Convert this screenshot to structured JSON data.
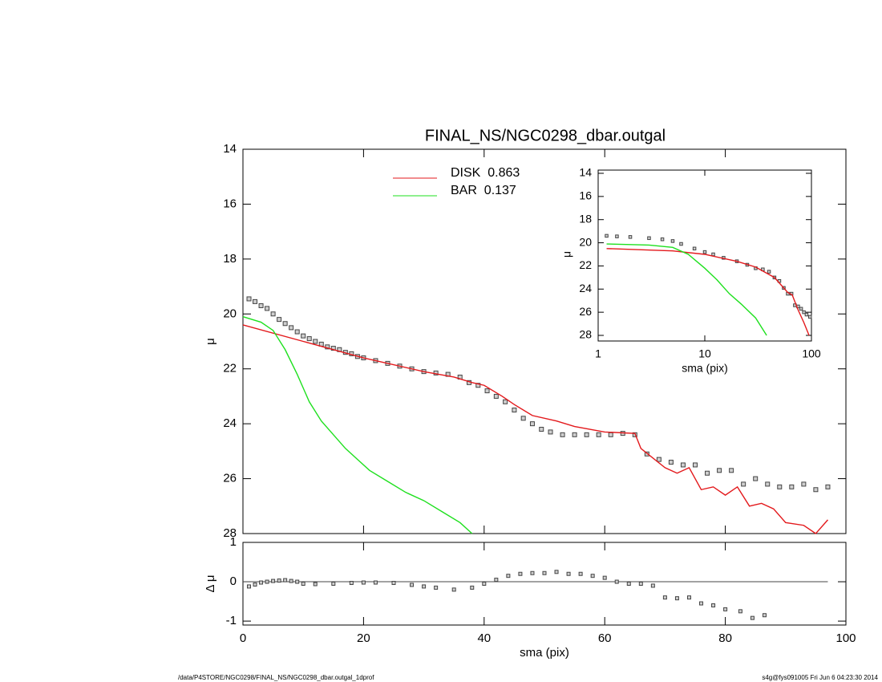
{
  "chart_data": [
    {
      "type": "line",
      "title": "FINAL_NS/NGC0298_dbar.outgal",
      "ylabel": "μ",
      "xlim": [
        0,
        100
      ],
      "ylim": [
        28,
        14
      ],
      "yticks": [
        14,
        16,
        18,
        20,
        22,
        24,
        26,
        28
      ],
      "series": [
        {
          "marker": "square",
          "color": "#444444",
          "x": [
            1,
            2,
            3,
            4,
            5,
            6,
            7,
            8,
            9,
            10,
            11,
            12,
            13,
            14,
            15,
            16,
            17,
            18,
            19,
            20,
            22,
            24,
            26,
            28,
            30,
            32,
            34,
            36,
            37.5,
            39,
            40.5,
            42,
            43.5,
            45,
            46.5,
            48,
            49.5,
            51,
            53,
            55,
            57,
            59,
            61,
            63,
            65,
            67,
            69,
            71,
            73,
            75,
            77,
            79,
            81,
            83,
            85,
            87,
            89,
            91,
            93,
            95,
            97
          ],
          "values": [
            19.45,
            19.55,
            19.7,
            19.8,
            20.0,
            20.2,
            20.35,
            20.5,
            20.65,
            20.8,
            20.9,
            21.0,
            21.1,
            21.2,
            21.25,
            21.3,
            21.4,
            21.45,
            21.55,
            21.6,
            21.7,
            21.8,
            21.9,
            22.0,
            22.1,
            22.15,
            22.2,
            22.3,
            22.5,
            22.6,
            22.8,
            23.0,
            23.2,
            23.5,
            23.8,
            24.0,
            24.2,
            24.3,
            24.4,
            24.4,
            24.4,
            24.4,
            24.4,
            24.35,
            24.4,
            25.1,
            25.3,
            25.4,
            25.5,
            25.5,
            25.8,
            25.7,
            25.7,
            26.2,
            26.0,
            26.2,
            26.3,
            26.3,
            26.2,
            26.4,
            26.3
          ]
        },
        {
          "name": "DISK  0.863",
          "color": "#e3191c",
          "x": [
            0,
            10,
            20,
            30,
            35,
            38,
            40,
            43,
            45,
            48,
            52,
            55,
            60,
            65,
            66,
            70,
            72,
            74,
            76,
            78,
            80,
            82,
            84,
            86,
            88,
            90,
            93,
            95,
            97
          ],
          "values": [
            20.4,
            21.0,
            21.6,
            22.1,
            22.3,
            22.5,
            22.6,
            23.0,
            23.3,
            23.7,
            23.9,
            24.1,
            24.3,
            24.35,
            24.9,
            25.6,
            25.8,
            25.6,
            26.4,
            26.3,
            26.6,
            26.3,
            27.0,
            26.9,
            27.1,
            27.6,
            27.7,
            28.0,
            27.5
          ]
        },
        {
          "name": "BAR  0.137",
          "color": "#1ee01e",
          "x": [
            0,
            3,
            5,
            7,
            9,
            11,
            13,
            15,
            17,
            19,
            21,
            24,
            27,
            30,
            33,
            36,
            38
          ],
          "values": [
            20.1,
            20.3,
            20.6,
            21.3,
            22.2,
            23.2,
            23.9,
            24.4,
            24.9,
            25.3,
            25.7,
            26.1,
            26.5,
            26.8,
            27.2,
            27.6,
            28.0
          ]
        }
      ]
    },
    {
      "type": "scatter",
      "ylabel": "Δ μ",
      "xlabel": "sma (pix)",
      "xlim": [
        0,
        100
      ],
      "xticks": [
        0,
        20,
        40,
        60,
        80,
        100
      ],
      "ylim": [
        -1.1,
        1
      ],
      "yticks": [
        -1,
        0,
        1
      ],
      "hline": 0,
      "series": [
        {
          "marker": "square",
          "color": "#444444",
          "x": [
            1,
            2,
            3,
            4,
            5,
            6,
            7,
            8,
            9,
            10,
            12,
            15,
            18,
            20,
            22,
            25,
            28,
            30,
            32,
            35,
            38,
            40,
            42,
            44,
            46,
            48,
            50,
            52,
            54,
            56,
            58,
            60,
            62,
            64,
            66,
            68,
            70,
            72,
            74,
            76,
            78,
            80,
            82.5,
            84.5,
            86.5
          ],
          "values": [
            -0.12,
            -0.07,
            -0.02,
            0.0,
            0.02,
            0.03,
            0.04,
            0.02,
            0.0,
            -0.05,
            -0.06,
            -0.05,
            -0.03,
            -0.02,
            -0.02,
            -0.03,
            -0.08,
            -0.12,
            -0.15,
            -0.2,
            -0.15,
            -0.05,
            0.05,
            0.15,
            0.2,
            0.22,
            0.22,
            0.25,
            0.2,
            0.2,
            0.15,
            0.1,
            0.0,
            -0.05,
            -0.05,
            -0.1,
            -0.4,
            -0.42,
            -0.4,
            -0.55,
            -0.6,
            -0.7,
            -0.75,
            -0.92,
            -0.85
          ]
        }
      ]
    },
    {
      "type": "line",
      "log_x": true,
      "ylabel": "μ",
      "xlabel": "sma (pix)",
      "xlim": [
        1,
        100
      ],
      "xticks": [
        1,
        10,
        100
      ],
      "ylim": [
        28,
        14
      ],
      "yticks": [
        14,
        16,
        18,
        20,
        22,
        24,
        26,
        28
      ],
      "series": [
        {
          "marker": "square",
          "color": "#444444",
          "x": [
            1.2,
            1.5,
            2,
            3,
            4,
            5,
            6,
            8,
            10,
            12,
            15,
            20,
            25,
            30,
            35,
            40,
            45,
            50,
            55,
            60,
            65,
            70,
            75,
            80,
            85,
            90,
            97
          ],
          "values": [
            19.4,
            19.45,
            19.5,
            19.6,
            19.7,
            19.85,
            20.1,
            20.5,
            20.8,
            21.0,
            21.3,
            21.6,
            21.9,
            22.2,
            22.3,
            22.5,
            23.0,
            23.3,
            23.9,
            24.4,
            24.4,
            25.4,
            25.5,
            25.7,
            26.0,
            26.2,
            26.4
          ]
        },
        {
          "color": "#e3191c",
          "x": [
            1.2,
            5,
            10,
            20,
            30,
            45,
            60,
            66,
            75,
            85,
            95
          ],
          "values": [
            20.5,
            20.7,
            21.0,
            21.6,
            22.1,
            23.0,
            24.3,
            24.5,
            25.8,
            26.9,
            28.0
          ]
        },
        {
          "color": "#1ee01e",
          "x": [
            1.2,
            3,
            5,
            7,
            10,
            13,
            17,
            22,
            30,
            38
          ],
          "values": [
            20.1,
            20.2,
            20.4,
            21.0,
            22.2,
            23.2,
            24.4,
            25.3,
            26.5,
            28.0
          ]
        }
      ]
    }
  ],
  "footer": {
    "left": "/data/P4STORE/NGC0298/FINAL_NS/NGC0298_dbar.outgal_1dprof",
    "right": "s4g@fys091005  Fri Jun  6 04:23:30 2014"
  }
}
